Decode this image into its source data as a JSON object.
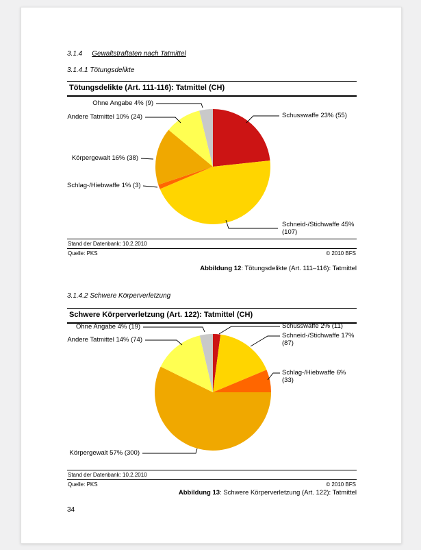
{
  "page": {
    "number": "34",
    "section_heading": {
      "num": "3.1.4",
      "text": "Gewaltstraftaten nach Tatmittel"
    },
    "subheading_1": "3.1.4.1 Tötungsdelikte",
    "subheading_2": "3.1.4.2 Schwere Körperverletzung"
  },
  "colors": {
    "schusswaffe": "#CC1414",
    "schneid_stichwaffe": "#FFD500",
    "schlag_hiebwaffe": "#FF6600",
    "koerpergewalt": "#F0A800",
    "andere_tatmittel": "#FFFF52",
    "ohne_angabe": "#C9C9C9"
  },
  "charts": [
    {
      "title": "Tötungsdelikte (Art. 111-116): Tatmittel (CH)",
      "labels": {
        "ohne_angabe": "Ohne Angabe 4% (9)",
        "andere_tatmittel": "Andere Tatmittel 10% (24)",
        "koerpergewalt": "Körpergewalt 16% (38)",
        "schlag_hiebwaffe": "Schlag-/Hiebwaffe 1% (3)",
        "schusswaffe": "Schusswaffe 23% (55)",
        "schneid_stichwaffe": "Schneid-/Stichwaffe 45% (107)"
      },
      "footer": {
        "stand": "Stand der Datenbank: 10.2.2010",
        "quelle": "Quelle: PKS",
        "copyright": "© 2010 BFS"
      },
      "caption_bold": "Abbildung 12",
      "caption_rest": ": Tötungsdelikte (Art. 111–116): Tatmittel"
    },
    {
      "title": "Schwere Körperverletzung (Art. 122): Tatmittel (CH)",
      "labels": {
        "ohne_angabe": "Ohne Angabe 4% (19)",
        "andere_tatmittel": "Andere Tatmittel 14% (74)",
        "schusswaffe": "Schusswaffe 2% (11)",
        "schneid_stichwaffe": "Schneid-/Stichwaffe 17% (87)",
        "schlag_hiebwaffe": "Schlag-/Hiebwaffe 6% (33)",
        "koerpergewalt": "Körpergewalt 57% (300)"
      },
      "footer": {
        "stand": "Stand der Datenbank: 10.2.2010",
        "quelle": "Quelle: PKS",
        "copyright": "© 2010 BFS"
      },
      "caption_bold": "Abbildung 13",
      "caption_rest": ": Schwere Körperverletzung (Art. 122): Tatmittel"
    }
  ],
  "chart_data": [
    {
      "type": "pie",
      "title": "Tötungsdelikte (Art. 111-116): Tatmittel (CH)",
      "categories": [
        "Schusswaffe",
        "Schneid-/Stichwaffe",
        "Schlag-/Hiebwaffe",
        "Körpergewalt",
        "Andere Tatmittel",
        "Ohne Angabe"
      ],
      "values_percent": [
        23,
        45,
        1,
        16,
        10,
        4
      ],
      "counts": [
        55,
        107,
        3,
        38,
        24,
        9
      ],
      "colors": [
        "#CC1414",
        "#FFD500",
        "#FF6600",
        "#F0A800",
        "#FFFF52",
        "#C9C9C9"
      ],
      "start_angle_deg": 0,
      "clockwise": true,
      "legend": "callout-labels"
    },
    {
      "type": "pie",
      "title": "Schwere Körperverletzung (Art. 122): Tatmittel (CH)",
      "categories": [
        "Schusswaffe",
        "Schneid-/Stichwaffe",
        "Schlag-/Hiebwaffe",
        "Körpergewalt",
        "Andere Tatmittel",
        "Ohne Angabe"
      ],
      "values_percent": [
        2,
        17,
        6,
        57,
        14,
        4
      ],
      "counts": [
        11,
        87,
        33,
        300,
        74,
        19
      ],
      "colors": [
        "#CC1414",
        "#FFD500",
        "#FF6600",
        "#F0A800",
        "#FFFF52",
        "#C9C9C9"
      ],
      "start_angle_deg": 0,
      "clockwise": true,
      "legend": "callout-labels"
    }
  ]
}
